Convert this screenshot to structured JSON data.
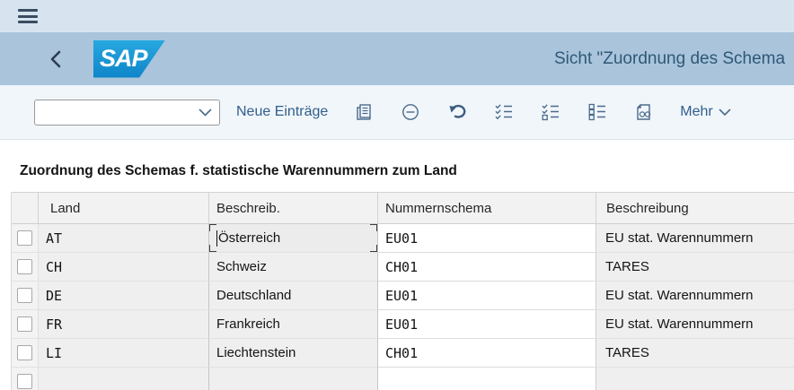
{
  "colors": {
    "topbar_bg": "#d7e4f0",
    "shell_bg": "#a9c4db",
    "toolbar_bg": "#f1f6fa",
    "sap_blue": "#1b9ad8",
    "accent_text": "#2f5e8c",
    "title_text": "#2f5878"
  },
  "shell": {
    "title": "Sicht \"Zuordnung des Schema"
  },
  "toolbar": {
    "combobox_value": "",
    "new_entries_label": "Neue Einträge",
    "more_label": "Mehr",
    "icons": [
      "copy-icon",
      "delete-icon",
      "undo-icon",
      "select-all-icon",
      "select-block-icon",
      "deselect-all-icon",
      "display-icon",
      "chevron-down-icon"
    ]
  },
  "section": {
    "title": "Zuordnung des Schemas f. statistische Warennummern zum Land"
  },
  "table": {
    "columns": [
      "Land",
      "Beschreib.",
      "Nummernschema",
      "Beschreibung"
    ],
    "focused_cell": {
      "row": 0,
      "col": "beschreib"
    },
    "rows": [
      {
        "land": "AT",
        "beschreib": "Österreich",
        "schema": "EU01",
        "beschreibung": "EU stat. Warennummern"
      },
      {
        "land": "CH",
        "beschreib": "Schweiz",
        "schema": "CH01",
        "beschreibung": "TARES"
      },
      {
        "land": "DE",
        "beschreib": "Deutschland",
        "schema": "EU01",
        "beschreibung": "EU stat. Warennummern"
      },
      {
        "land": "FR",
        "beschreib": "Frankreich",
        "schema": "EU01",
        "beschreibung": "EU stat. Warennummern"
      },
      {
        "land": "LI",
        "beschreib": "Liechtenstein",
        "schema": "CH01",
        "beschreibung": "TARES"
      },
      {
        "land": "",
        "beschreib": "",
        "schema": "",
        "beschreibung": ""
      }
    ]
  }
}
